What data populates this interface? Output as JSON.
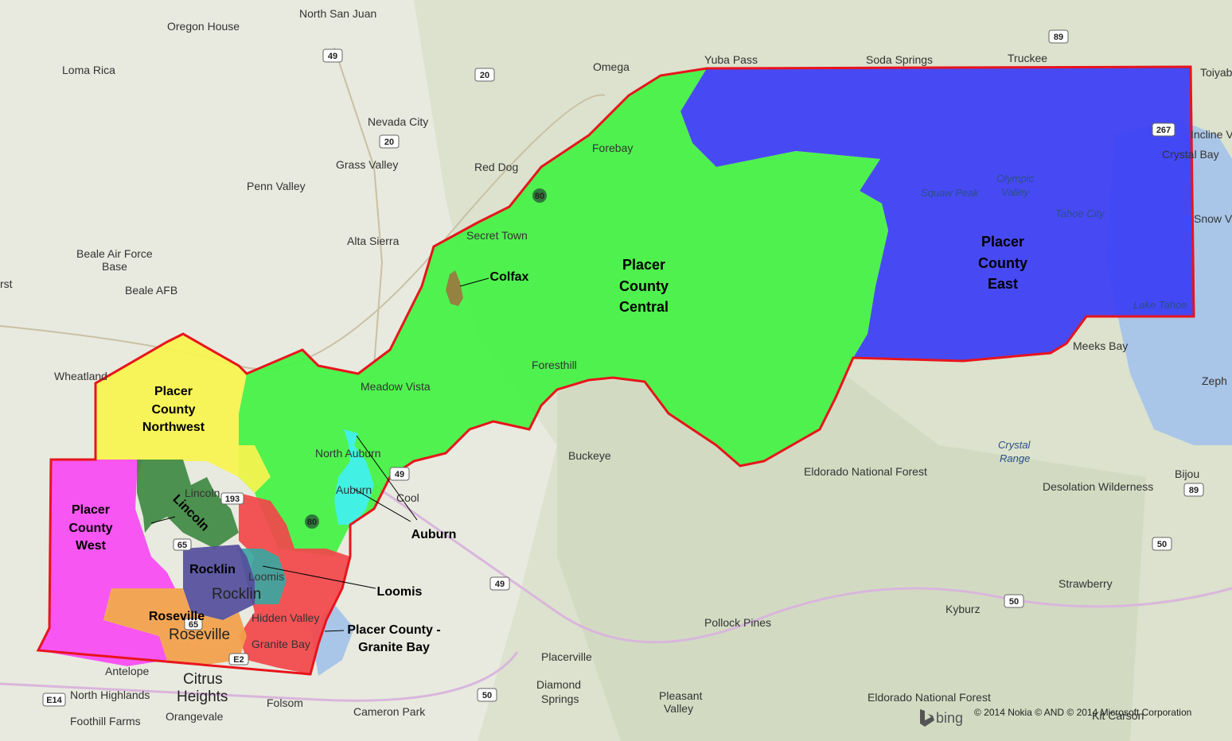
{
  "regions": {
    "east": {
      "lines": [
        "Placer",
        "County",
        "East"
      ],
      "color": "#3b3ef5"
    },
    "central": {
      "lines": [
        "Placer",
        "County",
        "Central"
      ],
      "color": "#44f244"
    },
    "northwest": {
      "lines": [
        "Placer",
        "County",
        "Northwest"
      ],
      "color": "#f8f44f"
    },
    "west": {
      "lines": [
        "Placer",
        "County",
        "West"
      ],
      "color": "#f74af3"
    },
    "lincoln": {
      "label": "Lincoln",
      "color": "#3f8a44"
    },
    "rocklin": {
      "label": "Rocklin",
      "color": "#544f9c"
    },
    "roseville": {
      "label": "Roseville",
      "color": "#f2a04a"
    },
    "loomis": {
      "label": "Loomis",
      "color": "#3ca6a0"
    },
    "granite_bay": {
      "lines": [
        "Placer County -",
        "Granite Bay"
      ],
      "color": "#f2474a"
    },
    "auburn": {
      "label": "Auburn",
      "color": "#43f0f0"
    },
    "colfax": {
      "label": "Colfax",
      "color": "#9b7a3f"
    }
  },
  "boundary_color": "#e8141c",
  "places": {
    "north_san_juan": "North San Juan",
    "oregon_house": "Oregon House",
    "loma_rica": "Loma Rica",
    "nevada_city": "Nevada City",
    "grass_valley": "Grass Valley",
    "penn_valley": "Penn Valley",
    "red_dog": "Red Dog",
    "omega": "Omega",
    "yuba_pass": "Yuba Pass",
    "soda_springs": "Soda Springs",
    "truckee": "Truckee",
    "toiyabe": "Toiyabе",
    "incline": "Incline V",
    "crystal_bay": "Crystal Bay",
    "olympic_valley_1": "Olympic",
    "olympic_valley_2": "Valley",
    "squaw_peak": "Squaw Peak",
    "tahoe_city": "Tahoe City",
    "snow_valley": "Snow V",
    "lake_tahoe": "Lake Tahoe",
    "meeks_bay": "Meeks Bay",
    "zephyr": "Zeph",
    "forebay": "Forebay",
    "secret_town": "Secret Town",
    "alta_sierra": "Alta Sierra",
    "beale_afb_base_1": "Beale Air Force",
    "beale_afb_base_2": "Base",
    "beale_afb": "Beale AFB",
    "rst": "rst",
    "wheatland": "Wheatland",
    "meadow_vista": "Meadow Vista",
    "foresthill": "Foresthill",
    "north_auburn": "North Auburn",
    "auburn_map": "Auburn",
    "cool": "Cool",
    "buckeye": "Buckeye",
    "eldorado_nf": "Eldorado National Forest",
    "crystal_range_1": "Crystal",
    "crystal_range_2": "Range",
    "desolation": "Desolation Wilderness",
    "bijou": "Bijou",
    "lincoln_map": "Lincoln",
    "rocklin_map": "Rocklin",
    "loomis_map": "Loomis",
    "hidden_valley": "Hidden Valley",
    "roseville_map": "Roseville",
    "granite_bay_map": "Granite Bay",
    "strawberry": "Strawberry",
    "kyburz": "Kyburz",
    "pollock_pines": "Pollock Pines",
    "placerville": "Placerville",
    "diamond_springs_1": "Diamond",
    "diamond_springs_2": "Springs",
    "pleasant_valley_1": "Pleasant",
    "pleasant_valley_2": "Valley",
    "eldorado_nf_2": "Eldorado National Forest",
    "cameron_park": "Cameron Park",
    "folsom": "Folsom",
    "antelope": "Antelope",
    "citrus_heights_1": "Citrus",
    "citrus_heights_2": "Heights",
    "north_highlands": "North Highlands",
    "orangevale": "Orangevale",
    "foothill_farms": "Foothill Farms",
    "kit_carson": "Kit Carson"
  },
  "highways": [
    "49",
    "20",
    "20",
    "89",
    "80",
    "267",
    "49",
    "193",
    "65",
    "80",
    "65",
    "49",
    "50",
    "50",
    "50",
    "89",
    "E14",
    "E2"
  ],
  "attribution": {
    "bing": "bing",
    "copyright": "© 2014 Nokia © AND © 2014 Microsoft Corporation"
  }
}
